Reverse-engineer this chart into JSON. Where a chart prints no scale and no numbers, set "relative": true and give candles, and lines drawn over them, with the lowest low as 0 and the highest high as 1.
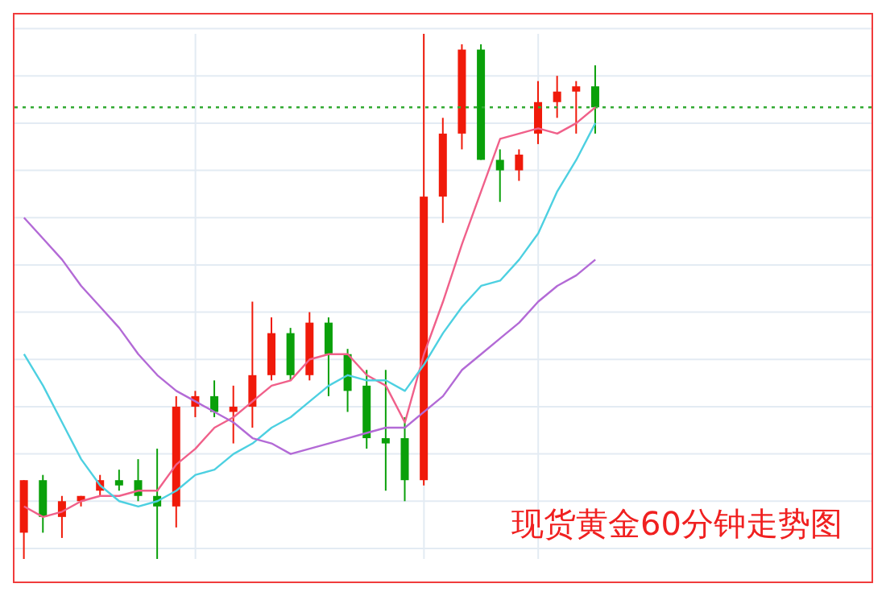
{
  "chart_data": {
    "type": "candlestick",
    "relative": true,
    "tick_labels": false,
    "grid": true,
    "legend": false,
    "annotations": [
      "现货黄金60分钟走势图"
    ],
    "categories": [
      null,
      null,
      null,
      null,
      null,
      null,
      null,
      null,
      null,
      null,
      null,
      null,
      null,
      null,
      null,
      null,
      null,
      null,
      null,
      null,
      null,
      null,
      null,
      null,
      null,
      null,
      null,
      null,
      null,
      null,
      null,
      null,
      null,
      null,
      null,
      null,
      null,
      null,
      null,
      null,
      null,
      null,
      null,
      null,
      null
    ],
    "ohlc": [
      [
        0.05,
        0.15,
        0,
        0.15
      ],
      [
        0.15,
        0.16,
        0.05,
        0.08
      ],
      [
        0.08,
        0.12,
        0.04,
        0.11
      ],
      [
        0.11,
        0.12,
        0.1,
        0.12
      ],
      [
        0.13,
        0.16,
        0.12,
        0.15
      ],
      [
        0.15,
        0.17,
        0.13,
        0.14
      ],
      [
        0.15,
        0.19,
        0.11,
        0.12
      ],
      [
        0.12,
        0.21,
        0,
        0.1
      ],
      [
        0.1,
        0.31,
        0.06,
        0.29
      ],
      [
        0.29,
        0.32,
        0.27,
        0.31
      ],
      [
        0.31,
        0.34,
        0.27,
        0.28
      ],
      [
        0.28,
        0.33,
        0.22,
        0.29
      ],
      [
        0.29,
        0.49,
        0.25,
        0.35
      ],
      [
        0.35,
        0.46,
        0.34,
        0.43
      ],
      [
        0.43,
        0.44,
        0.34,
        0.35
      ],
      [
        0.35,
        0.47,
        0.34,
        0.45
      ],
      [
        0.45,
        0.46,
        0.31,
        0.39
      ],
      [
        0.39,
        0.4,
        0.28,
        0.32
      ],
      [
        0.33,
        0.36,
        0.21,
        0.23
      ],
      [
        0.23,
        0.36,
        0.13,
        0.22
      ],
      [
        0.23,
        0.27,
        0.11,
        0.15
      ],
      [
        0.15,
        1,
        0.14,
        0.69
      ],
      [
        0.69,
        0.84,
        0.64,
        0.81
      ],
      [
        0.81,
        0.98,
        0.78,
        0.97
      ],
      [
        0.97,
        0.98,
        0.76,
        0.76
      ],
      [
        0.76,
        0.78,
        0.68,
        0.74
      ],
      [
        0.74,
        0.78,
        0.72,
        0.77
      ],
      [
        0.81,
        0.91,
        0.79,
        0.87
      ],
      [
        0.87,
        0.92,
        0.84,
        0.89
      ],
      [
        0.89,
        0.91,
        0.81,
        0.9
      ],
      [
        0.9,
        0.94,
        0.81,
        0.86
      ],
      null,
      null,
      null,
      null,
      null,
      null,
      null,
      null,
      null,
      null,
      null,
      null,
      null,
      null
    ],
    "colors": [
      "#f01a0a",
      "#0aa00a",
      "#f01a0a",
      "#f01a0a",
      "#f01a0a",
      "#0aa00a",
      "#0aa00a",
      "#0aa00a",
      "#f01a0a",
      "#f01a0a",
      "#0aa00a",
      "#f01a0a",
      "#f01a0a",
      "#f01a0a",
      "#0aa00a",
      "#f01a0a",
      "#0aa00a",
      "#0aa00a",
      "#0aa00a",
      "#0aa00a",
      "#0aa00a",
      "#f01a0a",
      "#f01a0a",
      "#f01a0a",
      "#0aa00a",
      "#0aa00a",
      "#f01a0a",
      "#f01a0a",
      "#f01a0a",
      "#f01a0a",
      "#0aa00a",
      null,
      null,
      null,
      null,
      null,
      null,
      null,
      null,
      null,
      null,
      null,
      null,
      null,
      null
    ],
    "series": [
      {
        "type": "line",
        "color": "#f0608a",
        "values": [
          0.1,
          0.08,
          0.09,
          0.11,
          0.12,
          0.12,
          0.13,
          0.13,
          0.18,
          0.21,
          0.25,
          0.27,
          0.3,
          0.33,
          0.34,
          0.38,
          0.39,
          0.39,
          0.35,
          0.33,
          0.26,
          0.39,
          0.49,
          0.6,
          0.7,
          0.8,
          0.81,
          0.82,
          0.81,
          0.83,
          0.86,
          null,
          null,
          null,
          null,
          null,
          null,
          null,
          null,
          null,
          null,
          null,
          null,
          null,
          null
        ]
      },
      {
        "type": "line",
        "color": "#4dd0e1",
        "values": [
          0.39,
          0.33,
          0.26,
          0.19,
          0.14,
          0.11,
          0.1,
          0.11,
          0.13,
          0.16,
          0.17,
          0.2,
          0.22,
          0.25,
          0.27,
          0.3,
          0.33,
          0.35,
          0.34,
          0.34,
          0.32,
          0.37,
          0.43,
          0.48,
          0.52,
          0.53,
          0.57,
          0.62,
          0.7,
          0.76,
          0.83,
          null,
          null,
          null,
          null,
          null,
          null,
          null,
          null,
          null,
          null,
          null,
          null,
          null,
          null
        ]
      },
      {
        "type": "line",
        "color": "#b36ad6",
        "values": [
          0.65,
          0.61,
          0.57,
          0.52,
          0.48,
          0.44,
          0.39,
          0.35,
          0.32,
          0.3,
          0.28,
          0.26,
          0.23,
          0.22,
          0.2,
          0.21,
          0.22,
          0.23,
          0.24,
          0.25,
          0.25,
          0.28,
          0.31,
          0.36,
          0.39,
          0.42,
          0.45,
          0.49,
          0.52,
          0.54,
          0.57,
          null,
          null,
          null,
          null,
          null,
          null,
          null,
          null,
          null,
          null,
          null,
          null,
          null,
          null
        ]
      }
    ],
    "ref_lines": [
      {
        "axis": "y",
        "value": 0.86,
        "color": "#33aa33",
        "line_style": "dotted"
      }
    ],
    "line_style": "solid",
    "marker": "none"
  }
}
